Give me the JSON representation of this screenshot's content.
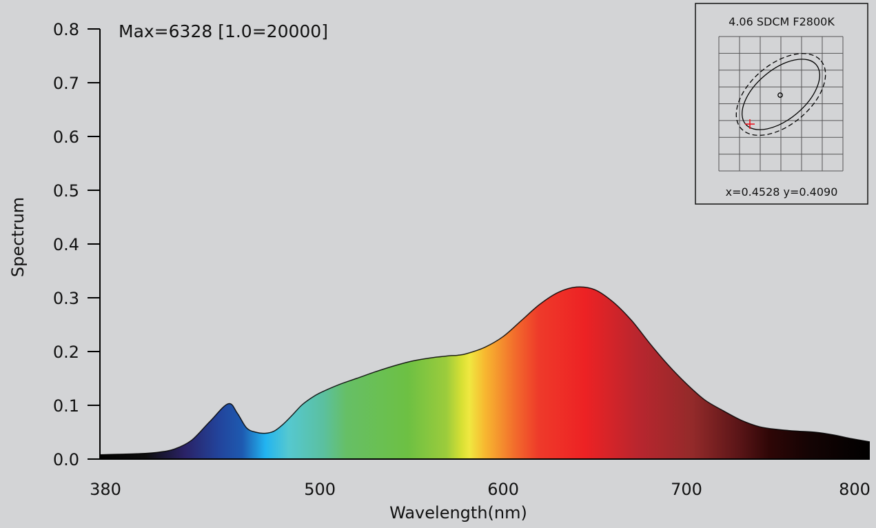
{
  "chart_data": {
    "type": "area",
    "title": "Max=6328  [1.0=20000]",
    "xlabel": "Wavelength(nm)",
    "ylabel": "Spectrum",
    "xlim": [
      380,
      800
    ],
    "ylim": [
      0,
      0.8
    ],
    "x_tick_labels": [
      "380",
      "500",
      "600",
      "700",
      "800"
    ],
    "x_tick_values": [
      380,
      500,
      600,
      700,
      800
    ],
    "y_tick_labels": [
      "0.0",
      "0.1",
      "0.2",
      "0.3",
      "0.4",
      "0.5",
      "0.6",
      "0.7",
      "0.8"
    ],
    "y_tick_values": [
      0,
      0.1,
      0.2,
      0.3,
      0.4,
      0.5,
      0.6,
      0.7,
      0.8
    ],
    "grid": false,
    "fill": "spectral color gradient by wavelength",
    "series": [
      {
        "x": [
          380,
          390,
          400,
          410,
          420,
          430,
          440,
          450,
          455,
          460,
          465,
          470,
          475,
          480,
          485,
          490,
          495,
          500,
          510,
          520,
          530,
          540,
          550,
          560,
          570,
          575,
          580,
          590,
          600,
          610,
          620,
          630,
          640,
          650,
          660,
          670,
          680,
          690,
          700,
          710,
          720,
          730,
          740,
          750,
          760,
          770,
          780,
          790,
          800
        ],
        "y": [
          0.008,
          0.009,
          0.01,
          0.012,
          0.018,
          0.035,
          0.07,
          0.103,
          0.085,
          0.058,
          0.05,
          0.048,
          0.052,
          0.065,
          0.082,
          0.1,
          0.113,
          0.123,
          0.138,
          0.15,
          0.162,
          0.173,
          0.182,
          0.188,
          0.192,
          0.193,
          0.196,
          0.208,
          0.228,
          0.258,
          0.288,
          0.31,
          0.32,
          0.315,
          0.292,
          0.258,
          0.215,
          0.175,
          0.14,
          0.11,
          0.09,
          0.072,
          0.06,
          0.055,
          0.052,
          0.05,
          0.045,
          0.038,
          0.032
        ]
      }
    ]
  },
  "inset": {
    "title": "4.06 SDCM  F2800K",
    "coords": "x=0.4528  y=0.4090"
  }
}
